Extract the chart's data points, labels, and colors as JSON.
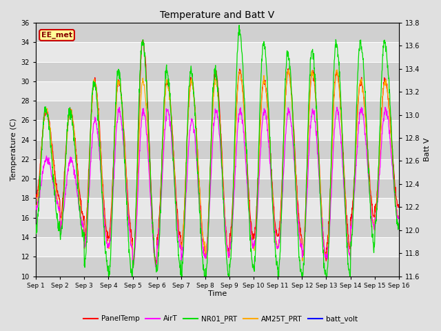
{
  "title": "Temperature and Batt V",
  "xlabel": "Time",
  "ylabel_left": "Temperature (C)",
  "ylabel_right": "Batt V",
  "annotation": "EE_met",
  "ylim_left": [
    10,
    36
  ],
  "ylim_right": [
    11.6,
    13.8
  ],
  "x_ticks": [
    0,
    1,
    2,
    3,
    4,
    5,
    6,
    7,
    8,
    9,
    10,
    11,
    12,
    13,
    14,
    15
  ],
  "x_tick_labels": [
    "Sep 1",
    "Sep 2",
    "Sep 3",
    "Sep 4",
    "Sep 5",
    "Sep 6",
    "Sep 7",
    "Sep 8",
    "Sep 9",
    "Sep 10",
    "Sep 11",
    "Sep 12",
    "Sep 13",
    "Sep 14",
    "Sep 15",
    "Sep 16"
  ],
  "series_colors": {
    "PanelTemp": "#ff0000",
    "AirT": "#ff00ff",
    "NR01_PRT": "#00dd00",
    "AM25T_PRT": "#ffaa00",
    "batt_volt": "#0000ff"
  },
  "legend_labels": [
    "PanelTemp",
    "AirT",
    "NR01_PRT",
    "AM25T_PRT",
    "batt_volt"
  ],
  "bg_color": "#e0e0e0",
  "plot_bg_color_light": "#e8e8e8",
  "plot_bg_color_dark": "#d0d0d0",
  "grid_color": "#ffffff",
  "annotation_bg": "#ffff99",
  "annotation_border": "#cc0000",
  "annotation_text_color": "#880000",
  "n_days": 15,
  "n_points_per_day": 96,
  "seed": 42
}
